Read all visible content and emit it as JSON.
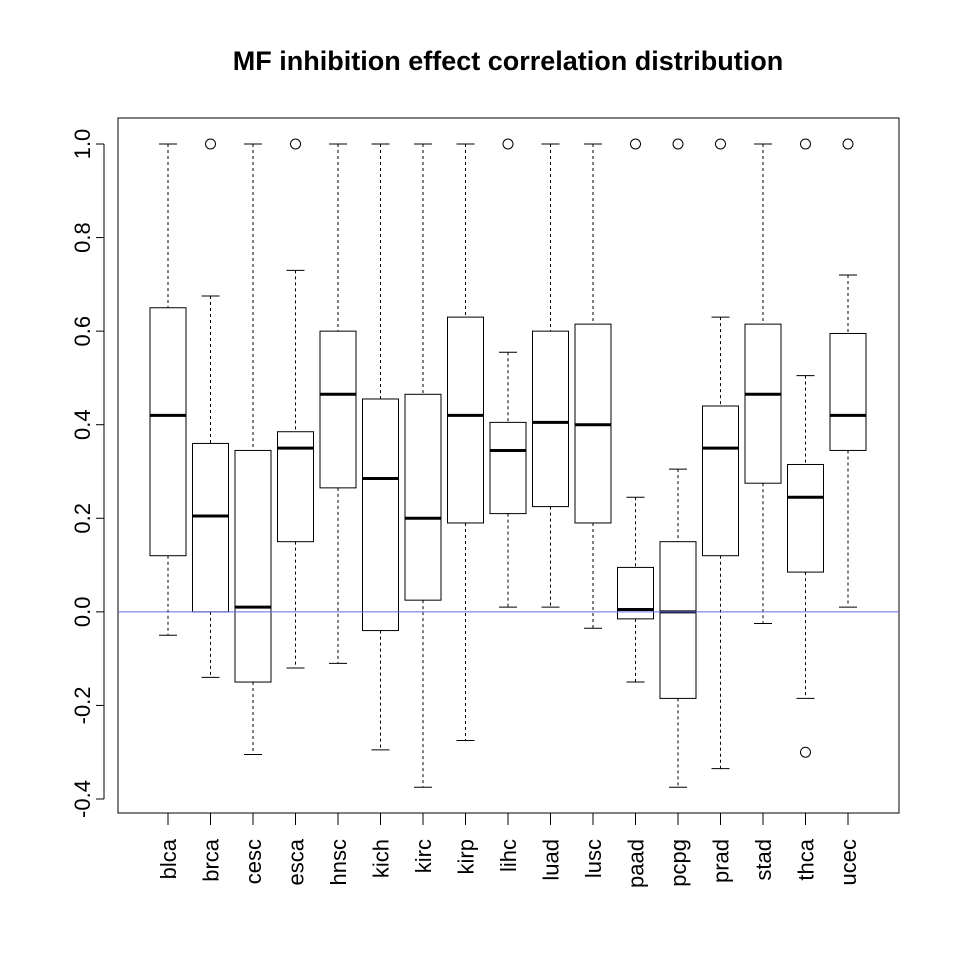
{
  "chart_data": {
    "type": "boxplot",
    "title": "MF inhibition effect correlation distribution",
    "xlabel": "",
    "ylabel": "",
    "ylim": [
      -0.43,
      1.06
    ],
    "yticks": [
      -0.4,
      -0.2,
      0.0,
      0.2,
      0.4,
      0.6,
      0.8,
      1.0
    ],
    "ytick_labels": [
      "-0.4",
      "-0.2",
      "0.0",
      "0.2",
      "0.4",
      "0.6",
      "0.8",
      "1.0"
    ],
    "reference_line": {
      "y": 0.0,
      "color": "#6666ee"
    },
    "categories": [
      "blca",
      "brca",
      "cesc",
      "esca",
      "hnsc",
      "kich",
      "kirc",
      "kirp",
      "lihc",
      "luad",
      "lusc",
      "paad",
      "pcpg",
      "prad",
      "stad",
      "thca",
      "ucec"
    ],
    "boxes": [
      {
        "min": -0.05,
        "q1": 0.12,
        "median": 0.42,
        "q3": 0.65,
        "max": 1.0,
        "outliers": []
      },
      {
        "min": -0.14,
        "q1": 0.0,
        "median": 0.205,
        "q3": 0.36,
        "max": 0.675,
        "outliers": [
          1.0
        ]
      },
      {
        "min": -0.305,
        "q1": -0.15,
        "median": 0.01,
        "q3": 0.345,
        "max": 1.0,
        "outliers": []
      },
      {
        "min": -0.12,
        "q1": 0.15,
        "median": 0.35,
        "q3": 0.385,
        "max": 0.73,
        "outliers": [
          1.0
        ]
      },
      {
        "min": -0.11,
        "q1": 0.265,
        "median": 0.465,
        "q3": 0.6,
        "max": 1.0,
        "outliers": []
      },
      {
        "min": -0.295,
        "q1": -0.04,
        "median": 0.285,
        "q3": 0.455,
        "max": 1.0,
        "outliers": []
      },
      {
        "min": -0.375,
        "q1": 0.025,
        "median": 0.2,
        "q3": 0.465,
        "max": 1.0,
        "outliers": []
      },
      {
        "min": -0.275,
        "q1": 0.19,
        "median": 0.42,
        "q3": 0.63,
        "max": 1.0,
        "outliers": []
      },
      {
        "min": 0.01,
        "q1": 0.21,
        "median": 0.345,
        "q3": 0.405,
        "max": 0.555,
        "outliers": [
          1.0
        ]
      },
      {
        "min": 0.01,
        "q1": 0.225,
        "median": 0.405,
        "q3": 0.6,
        "max": 1.0,
        "outliers": []
      },
      {
        "min": -0.035,
        "q1": 0.19,
        "median": 0.4,
        "q3": 0.615,
        "max": 1.0,
        "outliers": []
      },
      {
        "min": -0.15,
        "q1": -0.015,
        "median": 0.005,
        "q3": 0.095,
        "max": 0.245,
        "outliers": [
          1.0
        ]
      },
      {
        "min": -0.375,
        "q1": -0.185,
        "median": 0.0,
        "q3": 0.15,
        "max": 0.305,
        "outliers": [
          1.0
        ]
      },
      {
        "min": -0.335,
        "q1": 0.12,
        "median": 0.35,
        "q3": 0.44,
        "max": 0.63,
        "outliers": [
          1.0
        ]
      },
      {
        "min": -0.025,
        "q1": 0.275,
        "median": 0.465,
        "q3": 0.615,
        "max": 1.0,
        "outliers": []
      },
      {
        "min": -0.185,
        "q1": 0.085,
        "median": 0.245,
        "q3": 0.315,
        "max": 0.505,
        "outliers": [
          1.0,
          -0.3
        ]
      },
      {
        "min": 0.01,
        "q1": 0.345,
        "median": 0.42,
        "q3": 0.595,
        "max": 0.72,
        "outliers": [
          1.0
        ]
      }
    ],
    "grid": false,
    "legend": "none"
  }
}
